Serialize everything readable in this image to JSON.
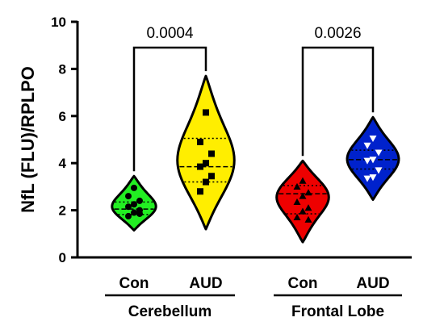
{
  "chart_data": {
    "type": "violin",
    "ylabel": "NfL (FLU)/RPLPO",
    "ylim": [
      0,
      10
    ],
    "yticks": [
      "0",
      "2",
      "4",
      "6",
      "8",
      "10"
    ],
    "groups": [
      {
        "region": "Cerebellum",
        "categories": [
          "Con",
          "AUD"
        ],
        "p_value": "0.0004",
        "series": [
          {
            "name": "Con",
            "color": "#22ee22",
            "marker": "circle",
            "range": [
              1.15,
              3.45
            ],
            "median": 2.05,
            "quartiles": [
              1.82,
              2.35
            ],
            "points": [
              2.95,
              2.6,
              2.4,
              2.25,
              2.15,
              2.0,
              1.9,
              1.75,
              1.85
            ]
          },
          {
            "name": "AUD",
            "color": "#ffee00",
            "marker": "square",
            "range": [
              1.2,
              7.7
            ],
            "median": 3.85,
            "quartiles": [
              3.2,
              5.05
            ],
            "points": [
              6.15,
              4.9,
              4.4,
              4.0,
              3.85,
              3.45,
              3.2,
              2.8
            ]
          }
        ]
      },
      {
        "region": "Frontal Lobe",
        "categories": [
          "Con",
          "AUD"
        ],
        "p_value": "0.0026",
        "series": [
          {
            "name": "Con",
            "color": "#ee0000",
            "marker": "triangle-up",
            "range": [
              0.65,
              4.1
            ],
            "median": 2.7,
            "quartiles": [
              1.85,
              3.05
            ],
            "points": [
              3.25,
              3.0,
              2.75,
              2.6,
              2.35,
              2.1,
              1.95,
              1.7,
              1.6
            ]
          },
          {
            "name": "AUD",
            "color": "#0022cc",
            "marker": "triangle-down",
            "range": [
              2.45,
              5.95
            ],
            "median": 4.15,
            "quartiles": [
              3.75,
              4.55
            ],
            "points": [
              5.05,
              4.75,
              4.45,
              4.15,
              4.1,
              3.7,
              3.4,
              3.35
            ]
          }
        ]
      }
    ]
  }
}
